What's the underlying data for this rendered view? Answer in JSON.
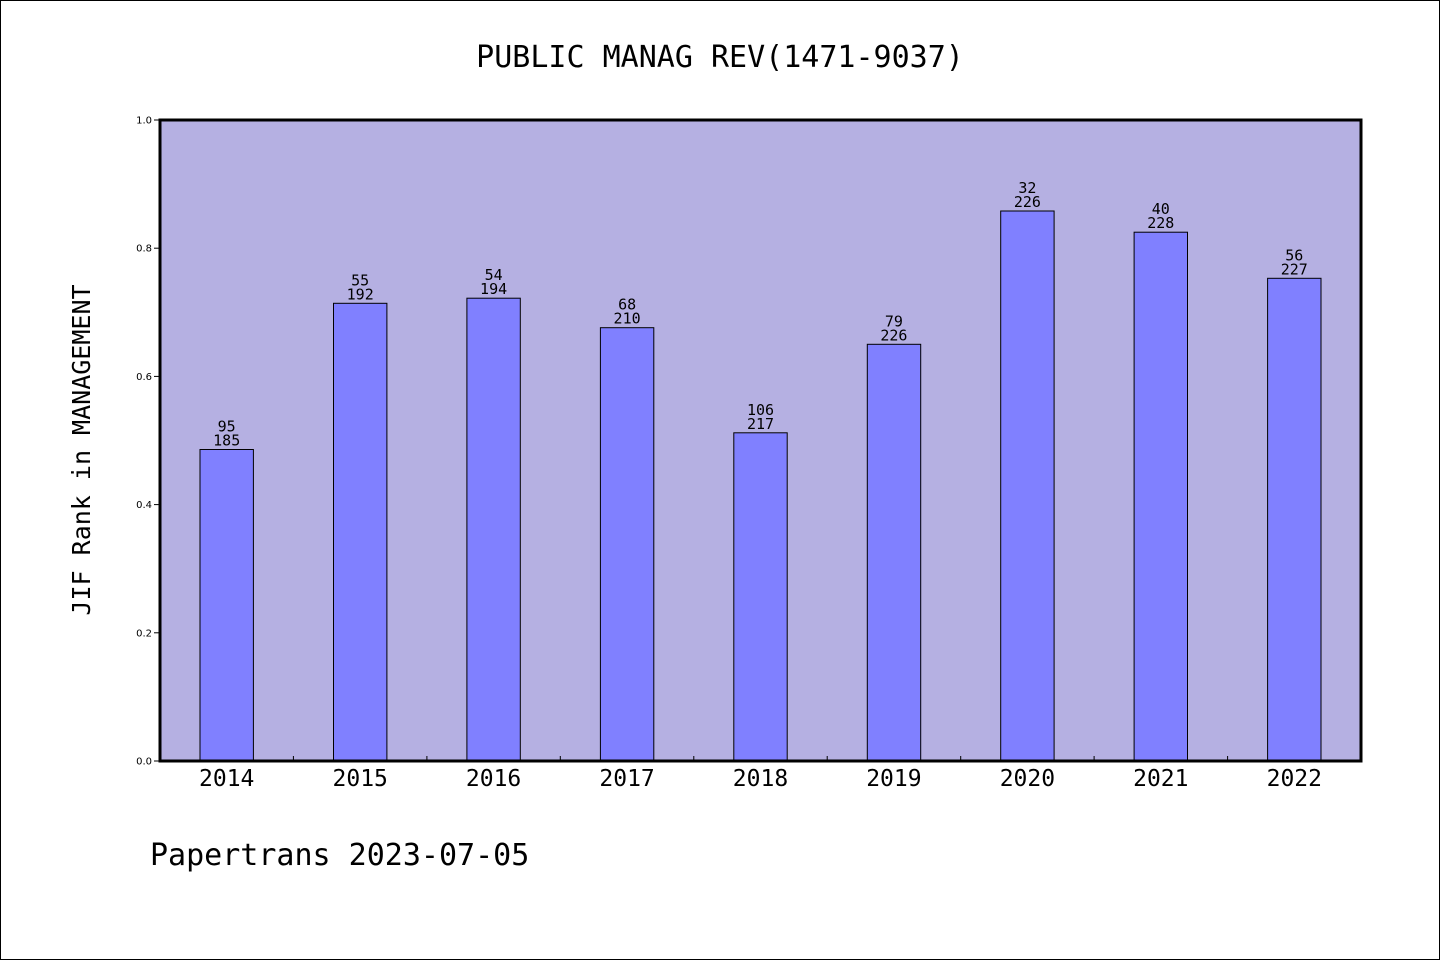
{
  "chart_data": {
    "type": "bar",
    "title": "PUBLIC MANAG REV(1471-9037)",
    "xlabel": "",
    "ylabel": "JIF Rank in MANAGEMENT",
    "ylim": [
      0,
      1.0
    ],
    "yticks": [
      "0.0",
      "0.2",
      "0.4",
      "0.6",
      "0.8",
      "1.0"
    ],
    "grid": false,
    "categories": [
      "2014",
      "2015",
      "2016",
      "2017",
      "2018",
      "2019",
      "2020",
      "2021",
      "2022"
    ],
    "values": [
      0.486,
      0.714,
      0.722,
      0.676,
      0.512,
      0.65,
      0.858,
      0.825,
      0.753
    ],
    "rank_labels": [
      "95",
      "55",
      "54",
      "68",
      "106",
      "79",
      "32",
      "40",
      "56"
    ],
    "total_labels": [
      "185",
      "192",
      "194",
      "210",
      "217",
      "226",
      "226",
      "228",
      "227"
    ],
    "colors": {
      "plot_background": "#b5b0e2",
      "bar_fill": "#8080ff",
      "bar_stroke": "#000000"
    }
  },
  "footer": "Papertrans 2023-07-05"
}
